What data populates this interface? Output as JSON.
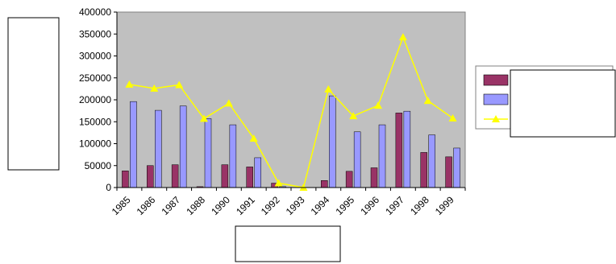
{
  "chart_data": {
    "type": "bar",
    "title": "",
    "xlabel": "",
    "ylabel": "",
    "ylim": [
      0,
      400000
    ],
    "yticks": [
      0,
      50000,
      100000,
      150000,
      200000,
      250000,
      300000,
      350000,
      400000
    ],
    "categories": [
      "1985",
      "1986",
      "1987",
      "1988",
      "1990",
      "1991",
      "1992",
      "1993",
      "1994",
      "1995",
      "1996",
      "1997",
      "1998",
      "1999"
    ],
    "series": [
      {
        "kind": "bar",
        "color": "#993366",
        "values": [
          38000,
          50000,
          52000,
          2000,
          52000,
          47000,
          10000,
          0,
          16000,
          37000,
          45000,
          170000,
          80000,
          70000
        ]
      },
      {
        "kind": "bar",
        "color": "#9999FF",
        "values": [
          196000,
          176000,
          186000,
          157000,
          143000,
          68000,
          2000,
          0,
          209000,
          127000,
          143000,
          174000,
          120000,
          90000
        ]
      },
      {
        "kind": "line",
        "color": "#FFFF00",
        "marker": "triangle",
        "values": [
          235000,
          226000,
          234000,
          157000,
          192000,
          112000,
          10000,
          0,
          224000,
          163000,
          187000,
          343000,
          198000,
          158000
        ]
      }
    ],
    "grid": false,
    "legend": "right",
    "plot_background": "#C0C0C0"
  }
}
